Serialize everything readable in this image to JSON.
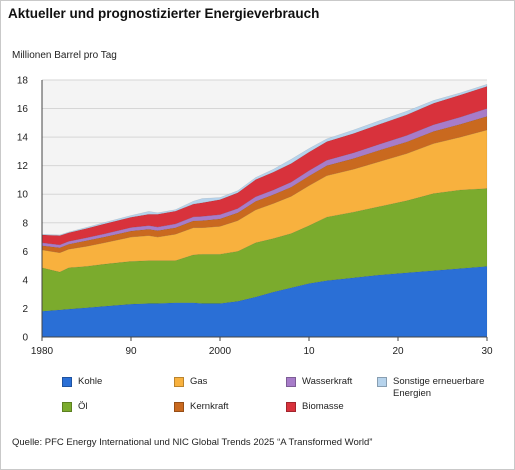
{
  "title": "Aktueller und prognostizierter Energieverbrauch",
  "source": "Quelle: PFC Energy International und NIC Global Trends 2025 “A Transformed World”",
  "chart_data": {
    "type": "area",
    "stacked": true,
    "ylabel": "Millionen Barrel pro Tag",
    "xlabel": "",
    "xlim": [
      1980,
      2030
    ],
    "ylim": [
      0,
      18
    ],
    "yticks": [
      0,
      2,
      4,
      6,
      8,
      10,
      12,
      14,
      16,
      18
    ],
    "xtick_values": [
      1980,
      1990,
      2000,
      2010,
      2020,
      2030
    ],
    "xtick_labels": [
      "1980",
      "90",
      "2000",
      "10",
      "20",
      "30"
    ],
    "grid": "horizontal",
    "legend_position": "bottom",
    "x": [
      1980,
      1982,
      1983,
      1985,
      1987,
      1990,
      1992,
      1993,
      1995,
      1997,
      1998,
      2000,
      2002,
      2004,
      2006,
      2008,
      2010,
      2012,
      2015,
      2018,
      2021,
      2024,
      2027,
      2030
    ],
    "series": [
      {
        "name": "Kohle",
        "color": "#2a6fd6",
        "values": [
          1.8,
          1.9,
          1.95,
          2.05,
          2.15,
          2.3,
          2.35,
          2.35,
          2.4,
          2.4,
          2.35,
          2.35,
          2.5,
          2.8,
          3.15,
          3.45,
          3.75,
          3.95,
          4.15,
          4.35,
          4.5,
          4.65,
          4.8,
          4.95
        ]
      },
      {
        "name": "Öl",
        "color": "#7bab2d",
        "values": [
          3.05,
          2.65,
          2.9,
          2.9,
          2.95,
          3.0,
          3.0,
          3.0,
          2.95,
          3.35,
          3.45,
          3.45,
          3.5,
          3.8,
          3.75,
          3.8,
          4.05,
          4.45,
          4.6,
          4.8,
          5.05,
          5.4,
          5.5,
          5.45
        ]
      },
      {
        "name": "Gas",
        "color": "#f8b13e",
        "values": [
          1.25,
          1.35,
          1.3,
          1.4,
          1.5,
          1.7,
          1.75,
          1.65,
          1.85,
          1.9,
          1.85,
          1.95,
          2.15,
          2.3,
          2.45,
          2.6,
          2.8,
          2.9,
          3.0,
          3.15,
          3.3,
          3.5,
          3.7,
          4.1
        ]
      },
      {
        "name": "Kernkraft",
        "color": "#c9691f",
        "values": [
          0.3,
          0.35,
          0.35,
          0.4,
          0.4,
          0.42,
          0.45,
          0.45,
          0.45,
          0.48,
          0.5,
          0.52,
          0.55,
          0.6,
          0.62,
          0.65,
          0.68,
          0.7,
          0.75,
          0.8,
          0.82,
          0.85,
          0.9,
          0.95
        ]
      },
      {
        "name": "Wasserkraft",
        "color": "#a77cc9",
        "values": [
          0.2,
          0.2,
          0.2,
          0.2,
          0.22,
          0.25,
          0.25,
          0.25,
          0.27,
          0.28,
          0.3,
          0.3,
          0.3,
          0.32,
          0.33,
          0.35,
          0.37,
          0.38,
          0.4,
          0.42,
          0.45,
          0.47,
          0.5,
          0.55
        ]
      },
      {
        "name": "Biomasse",
        "color": "#d8323c",
        "values": [
          0.55,
          0.65,
          0.6,
          0.65,
          0.7,
          0.72,
          0.8,
          0.9,
          0.9,
          0.9,
          0.95,
          1.05,
          1.1,
          1.2,
          1.25,
          1.3,
          1.3,
          1.3,
          1.35,
          1.4,
          1.45,
          1.5,
          1.55,
          1.55
        ]
      },
      {
        "name": "Sonstige erneuerbare Energien",
        "color": "#b6d3ec",
        "values": [
          0.05,
          0.05,
          0.05,
          0.08,
          0.1,
          0.12,
          0.2,
          0.1,
          0.1,
          0.2,
          0.3,
          0.15,
          0.15,
          0.15,
          0.2,
          0.3,
          0.25,
          0.2,
          0.25,
          0.25,
          0.25,
          0.2,
          0.15,
          0.15
        ]
      }
    ],
    "legend_order": [
      "Kohle",
      "Gas",
      "Wasserkraft",
      "Sonstige erneuerbare Energien",
      "Öl",
      "Kernkraft",
      "Biomasse"
    ]
  }
}
